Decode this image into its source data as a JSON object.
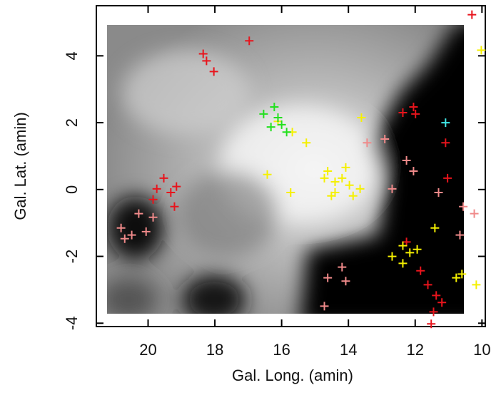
{
  "chart_data": {
    "type": "scatter",
    "x_label": "Gal. Long. (amin)",
    "y_label": "Gal. Lat. (amin)",
    "xlim": [
      21.55,
      9.9
    ],
    "ylim": [
      -4.1,
      5.5
    ],
    "xticks": [
      20,
      18,
      16,
      14,
      12,
      10
    ],
    "yticks": [
      -4,
      -2,
      0,
      2,
      4
    ],
    "series": [
      {
        "color": "#e8141c",
        "x": [
          16.97,
          18.35,
          18.25,
          18.03,
          10.3,
          12.05,
          11.99,
          12.37,
          11.09,
          19.74,
          19.53,
          19.32,
          19.21,
          19.85,
          19.15,
          11.62,
          11.37,
          11.2,
          11.52,
          11.45,
          11.84,
          12.26,
          11.03
        ],
        "y": [
          4.45,
          4.06,
          3.85,
          3.53,
          5.23,
          2.47,
          2.26,
          2.3,
          1.4,
          0.02,
          0.34,
          -0.09,
          -0.51,
          -0.3,
          0.09,
          -2.85,
          -3.17,
          -3.38,
          -4.02,
          -3.66,
          -2.43,
          -1.57,
          0.34
        ]
      },
      {
        "color": "#f08a8a",
        "x": [
          20.81,
          20.49,
          20.28,
          20.06,
          19.85,
          20.7,
          13.44,
          12.91,
          12.26,
          12.05,
          12.69,
          11.3,
          14.19,
          14.62,
          14.08,
          14.72,
          10.66,
          10.23,
          10.56
        ],
        "y": [
          -1.15,
          -1.36,
          -0.72,
          -1.26,
          -0.83,
          -1.47,
          1.4,
          1.51,
          0.87,
          0.55,
          0.02,
          -0.09,
          -2.32,
          -2.64,
          -2.74,
          -3.49,
          -1.36,
          -0.72,
          -0.51
        ]
      },
      {
        "color": "#f5f000",
        "x": [
          16.43,
          16.11,
          15.68,
          15.26,
          15.73,
          14.62,
          14.4,
          14.19,
          14.4,
          13.97,
          14.72,
          14.08,
          13.65,
          14.51,
          13.86,
          12.37,
          12.16,
          11.94,
          12.69,
          12.37,
          11.41,
          10.77,
          10.17,
          10.02,
          13.61,
          10.6
        ],
        "y": [
          0.45,
          2.04,
          1.72,
          1.4,
          -0.09,
          0.55,
          0.23,
          0.34,
          -0.09,
          0.13,
          0.34,
          0.66,
          0.02,
          -0.19,
          -0.19,
          -1.68,
          -1.89,
          -1.79,
          -2.0,
          -2.21,
          -1.15,
          -2.64,
          -2.85,
          4.17,
          2.15,
          -2.53
        ]
      },
      {
        "color": "#22e01e",
        "x": [
          16.54,
          16.22,
          16.11,
          16.0,
          15.85,
          16.32
        ],
        "y": [
          2.26,
          2.47,
          2.15,
          1.94,
          1.72,
          1.87
        ]
      },
      {
        "color": "#40e8e8",
        "x": [
          11.09
        ],
        "y": [
          2.0
        ]
      }
    ]
  }
}
